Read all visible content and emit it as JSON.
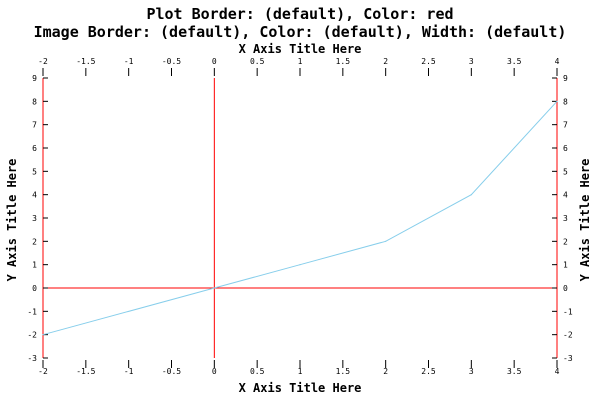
{
  "chart_data": {
    "type": "line",
    "title_lines": [
      "Plot Border: (default), Color: red",
      "Image Border: (default), Color: (default), Width: (default)"
    ],
    "xlabel": "X Axis Title Here",
    "ylabel": "Y Axis Title Here",
    "xlim": [
      -2,
      4
    ],
    "ylim": [
      -3,
      9
    ],
    "x_ticks": [
      -2,
      -1.5,
      -1,
      -0.5,
      0,
      0.5,
      1,
      1.5,
      2,
      2.5,
      3,
      3.5,
      4
    ],
    "y_ticks": [
      -3,
      -2,
      -1,
      0,
      1,
      2,
      3,
      4,
      5,
      6,
      7,
      8,
      9
    ],
    "x_tick_labels": [
      "-2",
      "-1.5",
      "-1",
      "-0.5",
      "0",
      "0.5",
      "1",
      "1.5",
      "2",
      "2.5",
      "3",
      "3.5",
      "4"
    ],
    "y_tick_labels": [
      "-3",
      "-2",
      "-1",
      "0",
      "1",
      "2",
      "3",
      "4",
      "5",
      "6",
      "7",
      "8",
      "9"
    ],
    "series": [
      {
        "x": [
          -2,
          0,
          1,
          2,
          3,
          4
        ],
        "y": [
          -2,
          0,
          1,
          2,
          4,
          8
        ]
      }
    ],
    "colors": {
      "line": "#87ceeb",
      "plot_border": "#ff0000",
      "zero_lines": "#ff0000",
      "text": "#000000"
    },
    "grid": false
  }
}
